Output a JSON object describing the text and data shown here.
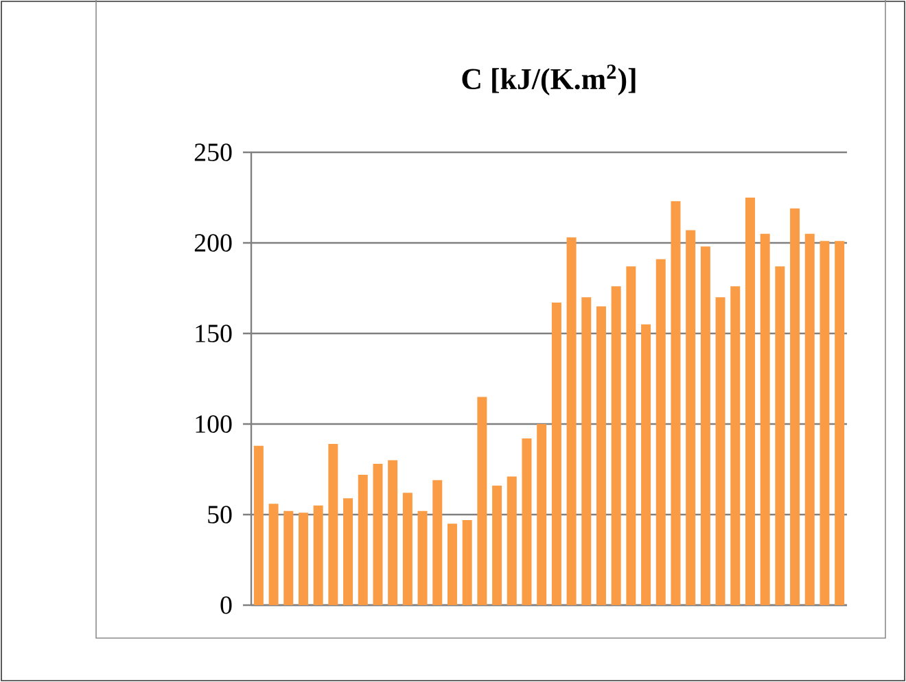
{
  "chart_data": {
    "type": "bar",
    "title": "C  [kJ/(K.m$^{2}$)]",
    "categories": [
      null,
      null,
      null,
      null,
      null,
      null,
      null,
      null,
      null,
      null,
      null,
      null,
      null,
      null,
      null,
      null,
      null,
      null,
      null,
      null,
      null,
      null,
      null,
      null,
      null,
      null,
      null,
      null,
      null,
      null,
      null,
      null,
      null,
      null,
      null,
      null,
      null,
      null,
      null,
      null
    ],
    "values": [
      88,
      56,
      52,
      51,
      55,
      89,
      59,
      72,
      78,
      80,
      62,
      52,
      69,
      45,
      47,
      115,
      66,
      71,
      92,
      100,
      167,
      203,
      170,
      165,
      176,
      187,
      155,
      191,
      223,
      207,
      198,
      170,
      176,
      225,
      205,
      187,
      219,
      205,
      201,
      201
    ],
    "color": "#f99c45",
    "ylim": [
      0,
      250
    ],
    "yticks": [
      0,
      50,
      100,
      150,
      200,
      250
    ],
    "grid": "y"
  }
}
